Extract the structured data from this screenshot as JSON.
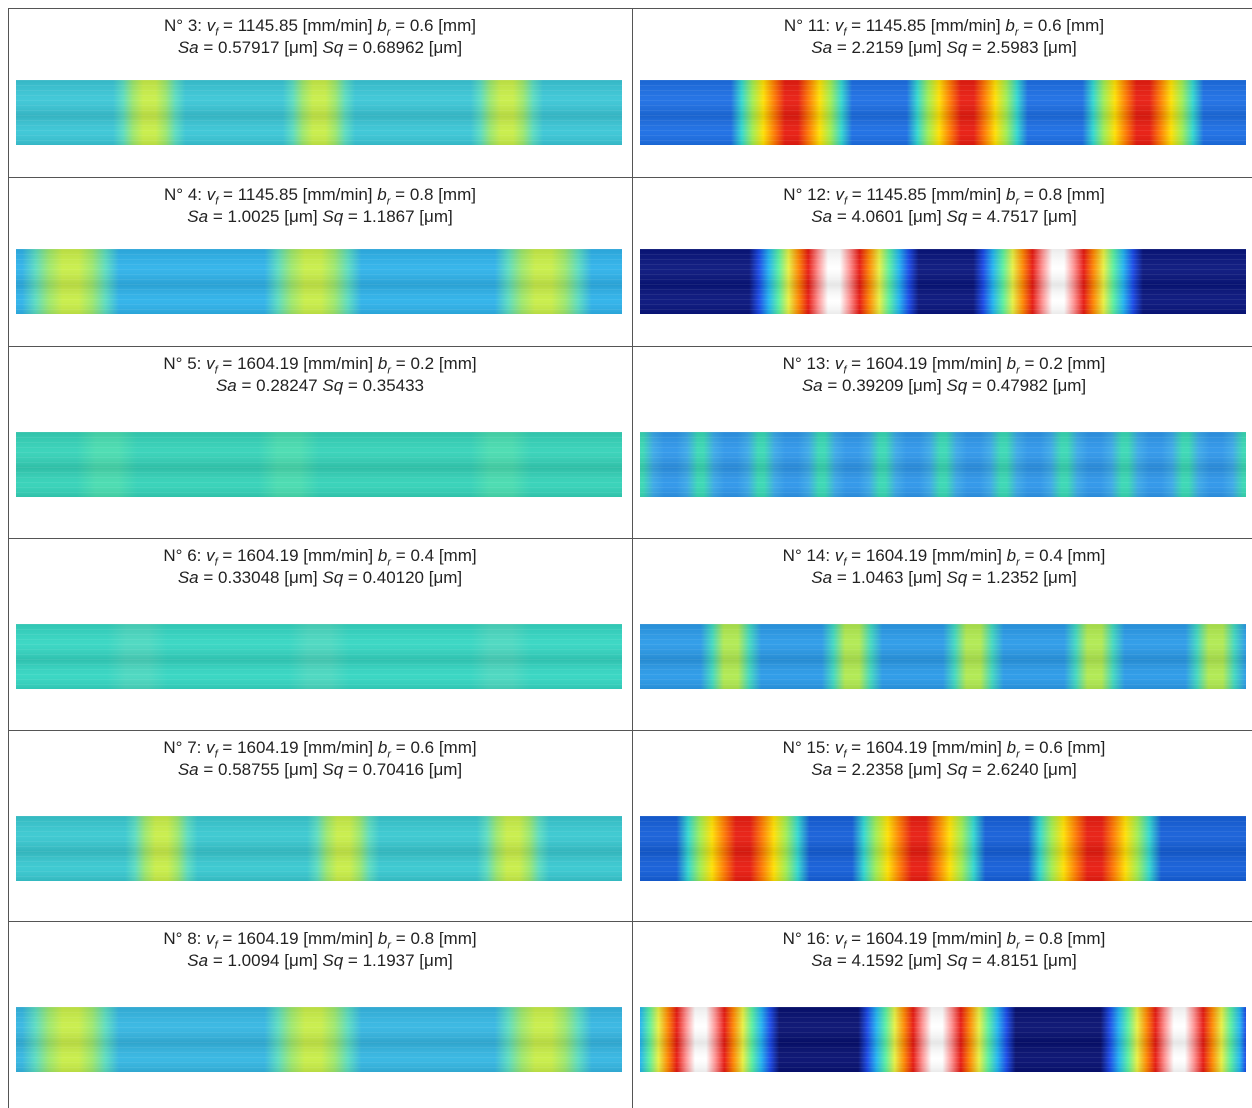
{
  "symbols": {
    "v": "v",
    "f": "f",
    "b": "b",
    "r": "r",
    "sa": "Sa",
    "sq": "Sq",
    "eq": "="
  },
  "table": {
    "rows": [
      [
        {
          "label": "N° 3:",
          "vf": "1145.85",
          "vf_unit": "[mm/min]",
          "br": "0.6",
          "br_unit": "[mm]",
          "sa": "0.57917",
          "sa_unit": "[μm]",
          "sq": "0.68962",
          "sq_unit": "[μm]"
        },
        {
          "label": "N° 11:",
          "vf": "1145.85",
          "vf_unit": "[mm/min]",
          "br": "0.6",
          "br_unit": "[mm]",
          "sa": "2.2159",
          "sa_unit": "[μm]",
          "sq": "2.5983",
          "sq_unit": "[μm]"
        }
      ],
      [
        {
          "label": "N° 4:",
          "vf": "1145.85",
          "vf_unit": "[mm/min]",
          "br": "0.8",
          "br_unit": "[mm]",
          "sa": "1.0025",
          "sa_unit": "[μm]",
          "sq": "1.1867",
          "sq_unit": "[μm]"
        },
        {
          "label": "N° 12:",
          "vf": "1145.85",
          "vf_unit": "[mm/min]",
          "br": "0.8",
          "br_unit": "[mm]",
          "sa": "4.0601",
          "sa_unit": "[μm]",
          "sq": "4.7517",
          "sq_unit": "[μm]"
        }
      ],
      [
        {
          "label": "N° 5:",
          "vf": "1604.19",
          "vf_unit": "[mm/min]",
          "br": "0.2",
          "br_unit": "[mm]",
          "sa": "0.28247",
          "sq": "0.35433"
        },
        {
          "label": "N° 13:",
          "vf": "1604.19",
          "vf_unit": "[mm/min]",
          "br": "0.2",
          "br_unit": "[mm]",
          "sa": "0.39209",
          "sa_unit": "[μm]",
          "sq": "0.47982",
          "sq_unit": "[μm]"
        }
      ],
      [
        {
          "label": "N° 6:",
          "vf": "1604.19",
          "vf_unit": "[mm/min]",
          "br": "0.4",
          "br_unit": "[mm]",
          "sa": "0.33048",
          "sa_unit": "[μm]",
          "sq": "0.40120",
          "sq_unit": "[μm]"
        },
        {
          "label": "N° 14:",
          "vf": "1604.19",
          "vf_unit": "[mm/min]",
          "br": "0.4",
          "br_unit": "[mm]",
          "sa": "1.0463",
          "sa_unit": "[μm]",
          "sq": "1.2352",
          "sq_unit": "[μm]"
        }
      ],
      [
        {
          "label": "N° 7:",
          "vf": "1604.19",
          "vf_unit": "[mm/min]",
          "br": "0.6",
          "br_unit": "[mm]",
          "sa": "0.58755",
          "sa_unit": "[μm]",
          "sq": "0.70416",
          "sq_unit": "[μm]"
        },
        {
          "label": "N° 15:",
          "vf": "1604.19",
          "vf_unit": "[mm/min]",
          "br": "0.6",
          "br_unit": "[mm]",
          "sa": "2.2358",
          "sa_unit": "[μm]",
          "sq": "2.6240",
          "sq_unit": "[μm]"
        }
      ],
      [
        {
          "label": "N° 8:",
          "vf": "1604.19",
          "vf_unit": "[mm/min]",
          "br": "0.8",
          "br_unit": "[mm]",
          "sa": "1.0094",
          "sa_unit": "[μm]",
          "sq": "1.1937",
          "sq_unit": "[μm]"
        },
        {
          "label": "N° 16:",
          "vf": "1604.19",
          "vf_unit": "[mm/min]",
          "br": "0.8",
          "br_unit": "[mm]",
          "sa": "4.1592",
          "sa_unit": "[μm]",
          "sq": "4.8151",
          "sq_unit": "[μm]"
        }
      ]
    ]
  }
}
